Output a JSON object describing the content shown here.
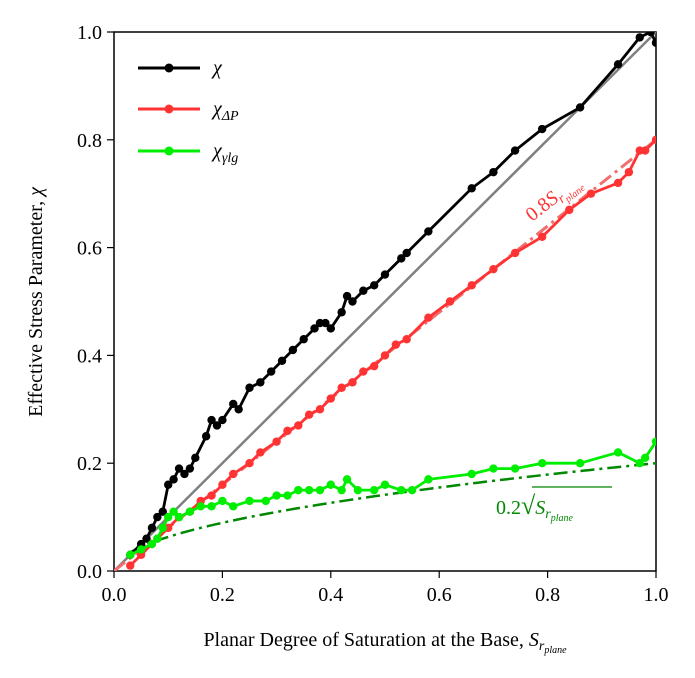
{
  "chart_data": {
    "type": "line",
    "title": "",
    "xlabel": "Planar Degree of Saturation at the Base, ",
    "xlabel_symbol": "S",
    "xlabel_sub": "r",
    "xlabel_subsub": "plane",
    "ylabel": "Effective Stress Parameter, ",
    "ylabel_symbol": "χ",
    "xlim": [
      0.0,
      1.0
    ],
    "ylim": [
      0.0,
      1.0
    ],
    "xticks": [
      "0.0",
      "0.2",
      "0.4",
      "0.6",
      "0.8",
      "1.0"
    ],
    "yticks": [
      "0.0",
      "0.2",
      "0.4",
      "0.6",
      "0.8",
      "1.0"
    ],
    "legend_position": "top-left",
    "colors": {
      "chi": "#000000",
      "chi_dp": "#ff3333",
      "chi_lg": "#00ee00",
      "one_to_one": "#808080",
      "fit_08": "#f07070",
      "fit_sqrt": "#008800"
    },
    "legend": [
      {
        "symbol": "χ",
        "sub": ""
      },
      {
        "symbol": "χ",
        "sub": "ΔP"
      },
      {
        "symbol": "χ",
        "sub": "γlg"
      }
    ],
    "annotations": {
      "fit_08": {
        "coef": "0.8",
        "symbol": "S",
        "sub": "r",
        "subsub": "plane"
      },
      "fit_sqrt": {
        "coef": "0.2",
        "radical": "√",
        "symbol": "S",
        "sub": "r",
        "subsub": "plane"
      }
    },
    "reference_lines": [
      {
        "name": "one-to-one",
        "x": [
          0.0,
          1.0
        ],
        "y": [
          0.0,
          1.0
        ]
      },
      {
        "name": "0.8 S",
        "x": [
          0.0,
          1.0
        ],
        "y": [
          0.0,
          0.8
        ]
      }
    ],
    "sqrt_fit": {
      "coefficient": 0.2,
      "x_start": 0.03,
      "x_end": 1.0
    },
    "series": [
      {
        "name": "χ",
        "x": [
          0.03,
          0.05,
          0.06,
          0.07,
          0.08,
          0.09,
          0.1,
          0.11,
          0.12,
          0.13,
          0.14,
          0.15,
          0.17,
          0.18,
          0.19,
          0.2,
          0.22,
          0.23,
          0.25,
          0.27,
          0.29,
          0.31,
          0.33,
          0.35,
          0.37,
          0.38,
          0.39,
          0.4,
          0.42,
          0.43,
          0.44,
          0.46,
          0.48,
          0.5,
          0.53,
          0.54,
          0.58,
          0.66,
          0.7,
          0.74,
          0.79,
          0.86,
          0.93,
          0.97,
          0.99,
          1.0
        ],
        "y": [
          0.03,
          0.05,
          0.06,
          0.08,
          0.1,
          0.11,
          0.16,
          0.17,
          0.19,
          0.18,
          0.19,
          0.21,
          0.25,
          0.28,
          0.27,
          0.28,
          0.31,
          0.3,
          0.34,
          0.35,
          0.37,
          0.39,
          0.41,
          0.43,
          0.45,
          0.46,
          0.46,
          0.45,
          0.48,
          0.51,
          0.5,
          0.52,
          0.53,
          0.55,
          0.58,
          0.59,
          0.63,
          0.71,
          0.74,
          0.78,
          0.82,
          0.86,
          0.94,
          0.99,
          1.0,
          0.98
        ]
      },
      {
        "name": "χΔP",
        "x": [
          0.03,
          0.05,
          0.07,
          0.08,
          0.1,
          0.12,
          0.14,
          0.16,
          0.18,
          0.2,
          0.22,
          0.25,
          0.27,
          0.3,
          0.32,
          0.34,
          0.36,
          0.38,
          0.4,
          0.42,
          0.44,
          0.46,
          0.48,
          0.5,
          0.52,
          0.54,
          0.58,
          0.62,
          0.66,
          0.7,
          0.74,
          0.79,
          0.84,
          0.88,
          0.93,
          0.95,
          0.97,
          0.98,
          1.0
        ],
        "y": [
          0.01,
          0.03,
          0.05,
          0.06,
          0.08,
          0.1,
          0.11,
          0.13,
          0.14,
          0.16,
          0.18,
          0.2,
          0.22,
          0.24,
          0.26,
          0.27,
          0.29,
          0.3,
          0.32,
          0.34,
          0.35,
          0.37,
          0.38,
          0.4,
          0.42,
          0.43,
          0.47,
          0.5,
          0.53,
          0.56,
          0.59,
          0.62,
          0.67,
          0.7,
          0.72,
          0.74,
          0.78,
          0.78,
          0.8
        ]
      },
      {
        "name": "χγlg",
        "x": [
          0.03,
          0.05,
          0.07,
          0.08,
          0.09,
          0.1,
          0.11,
          0.12,
          0.14,
          0.16,
          0.18,
          0.2,
          0.22,
          0.25,
          0.28,
          0.3,
          0.32,
          0.34,
          0.36,
          0.38,
          0.4,
          0.42,
          0.43,
          0.45,
          0.48,
          0.5,
          0.53,
          0.55,
          0.58,
          0.66,
          0.7,
          0.74,
          0.79,
          0.86,
          0.93,
          0.97,
          0.98,
          1.0
        ],
        "y": [
          0.03,
          0.04,
          0.05,
          0.06,
          0.08,
          0.1,
          0.11,
          0.1,
          0.11,
          0.12,
          0.12,
          0.13,
          0.12,
          0.13,
          0.13,
          0.14,
          0.14,
          0.15,
          0.15,
          0.15,
          0.16,
          0.15,
          0.17,
          0.15,
          0.15,
          0.16,
          0.15,
          0.15,
          0.17,
          0.18,
          0.19,
          0.19,
          0.2,
          0.2,
          0.22,
          0.2,
          0.21,
          0.24
        ]
      }
    ]
  }
}
